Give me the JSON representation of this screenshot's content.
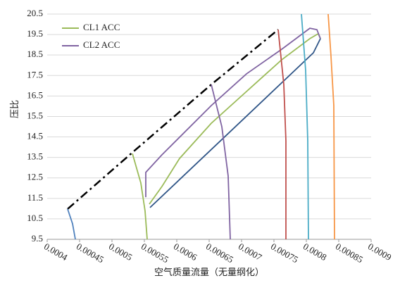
{
  "chart_data": {
    "type": "line",
    "x_label": "空气质量流量（无量纲化）",
    "y_label": "压比",
    "xlim": [
      0.0004,
      0.0009
    ],
    "xticks": [
      0.0004,
      0.00045,
      0.0005,
      0.00055,
      0.0006,
      0.00065,
      0.0007,
      0.00075,
      0.0008,
      0.00085,
      0.0009
    ],
    "ylim": [
      9.5,
      20.5
    ],
    "yticks": [
      9.5,
      10.5,
      11.5,
      12.5,
      13.5,
      14.5,
      15.5,
      16.5,
      17.5,
      18.5,
      19.5,
      20.5
    ],
    "grid": true,
    "legend": "upper left",
    "series": [
      {
        "name": "CL1 ACC",
        "color": "#9bbb59",
        "x": [
          0.0005576,
          0.0005772,
          0.0006043,
          0.0006533,
          0.0007076,
          0.000762,
          0.0008054,
          0.0008185,
          0.0008217
        ],
        "values": [
          11.22,
          12.08,
          13.45,
          15.17,
          16.72,
          18.27,
          19.3,
          19.54,
          19.3
        ]
      },
      {
        "name": "CL2 ACC",
        "color": "#8064a2",
        "x": [
          0.0005522,
          0.0005522,
          0.0005772,
          0.0006533,
          0.0007076,
          0.000762,
          0.0008054,
          0.0008163,
          0.0008217
        ],
        "values": [
          11.56,
          12.77,
          13.63,
          16.03,
          17.58,
          18.78,
          19.81,
          19.74,
          19.3
        ]
      },
      {
        "color": "#2f5587",
        "x": [
          0.0005587,
          0.0008109,
          0.0008217
        ],
        "values": [
          11.05,
          18.61,
          19.3
        ]
      },
      {
        "color": "#000000",
        "dash": true,
        "x": [
          0.0004315,
          0.0005337,
          0.0006533,
          0.0007565
        ],
        "values": [
          10.98,
          13.8,
          17.06,
          19.74
        ]
      },
      {
        "color": "#4f81bd",
        "x": [
          0.0004315,
          0.0004391,
          0.0004435
        ],
        "values": [
          10.98,
          10.26,
          9.5
        ]
      },
      {
        "color": "#9bbb59",
        "x": [
          0.0005315,
          0.0005446,
          0.0005511,
          0.0005543
        ],
        "values": [
          13.69,
          12.25,
          10.88,
          9.5
        ]
      },
      {
        "color": "#8064a2",
        "x": [
          0.0006533,
          0.0006696,
          0.0006793,
          0.0006826
        ],
        "values": [
          17.06,
          15.0,
          12.59,
          9.5
        ]
      },
      {
        "color": "#c0504d",
        "x": [
          0.0007565,
          0.0007652,
          0.0007685,
          0.0007685
        ],
        "values": [
          19.74,
          17.06,
          14.31,
          9.5
        ]
      },
      {
        "color": "#4bacc6",
        "x": [
          0.0007924,
          0.0007989,
          0.0008022,
          0.0008033
        ],
        "values": [
          20.5,
          17.75,
          14.31,
          9.5
        ]
      },
      {
        "color": "#f79646",
        "x": [
          0.0008337,
          0.000838,
          0.0008424,
          0.0008435
        ],
        "values": [
          20.5,
          18.44,
          16.03,
          9.5
        ]
      }
    ]
  }
}
